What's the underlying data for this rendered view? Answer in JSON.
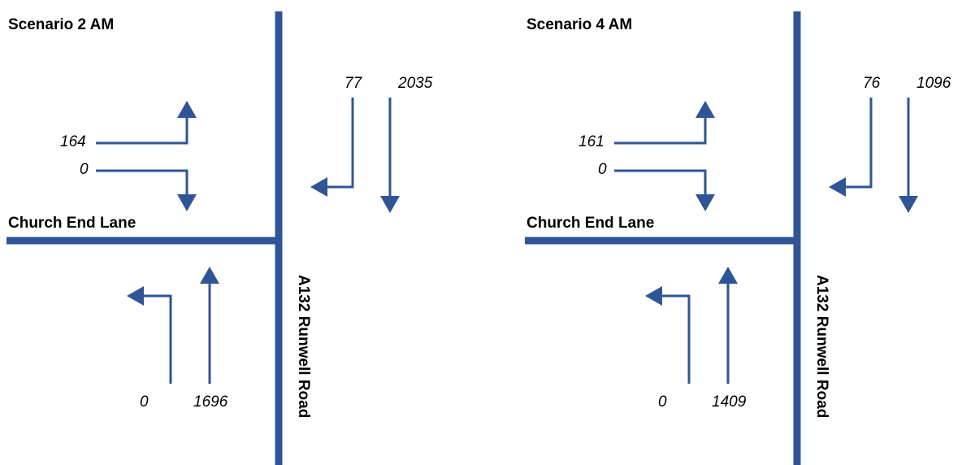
{
  "colors": {
    "road": "#2f5597",
    "arrow": "#2f5597",
    "text": "#000000"
  },
  "street_names": {
    "side_road": "Church End Lane",
    "main_road": "A132 Runwell Road"
  },
  "scenarios": [
    {
      "title": "Scenario 2 AM",
      "flows": {
        "side_left_turn": "164",
        "side_right_turn": "0",
        "north_right_turn": "77",
        "north_ahead": "2035",
        "south_left_turn": "0",
        "south_ahead": "1696"
      }
    },
    {
      "title": "Scenario 4 AM",
      "flows": {
        "side_left_turn": "161",
        "side_right_turn": "0",
        "north_right_turn": "76",
        "north_ahead": "1096",
        "south_left_turn": "0",
        "south_ahead": "1409"
      }
    }
  ]
}
